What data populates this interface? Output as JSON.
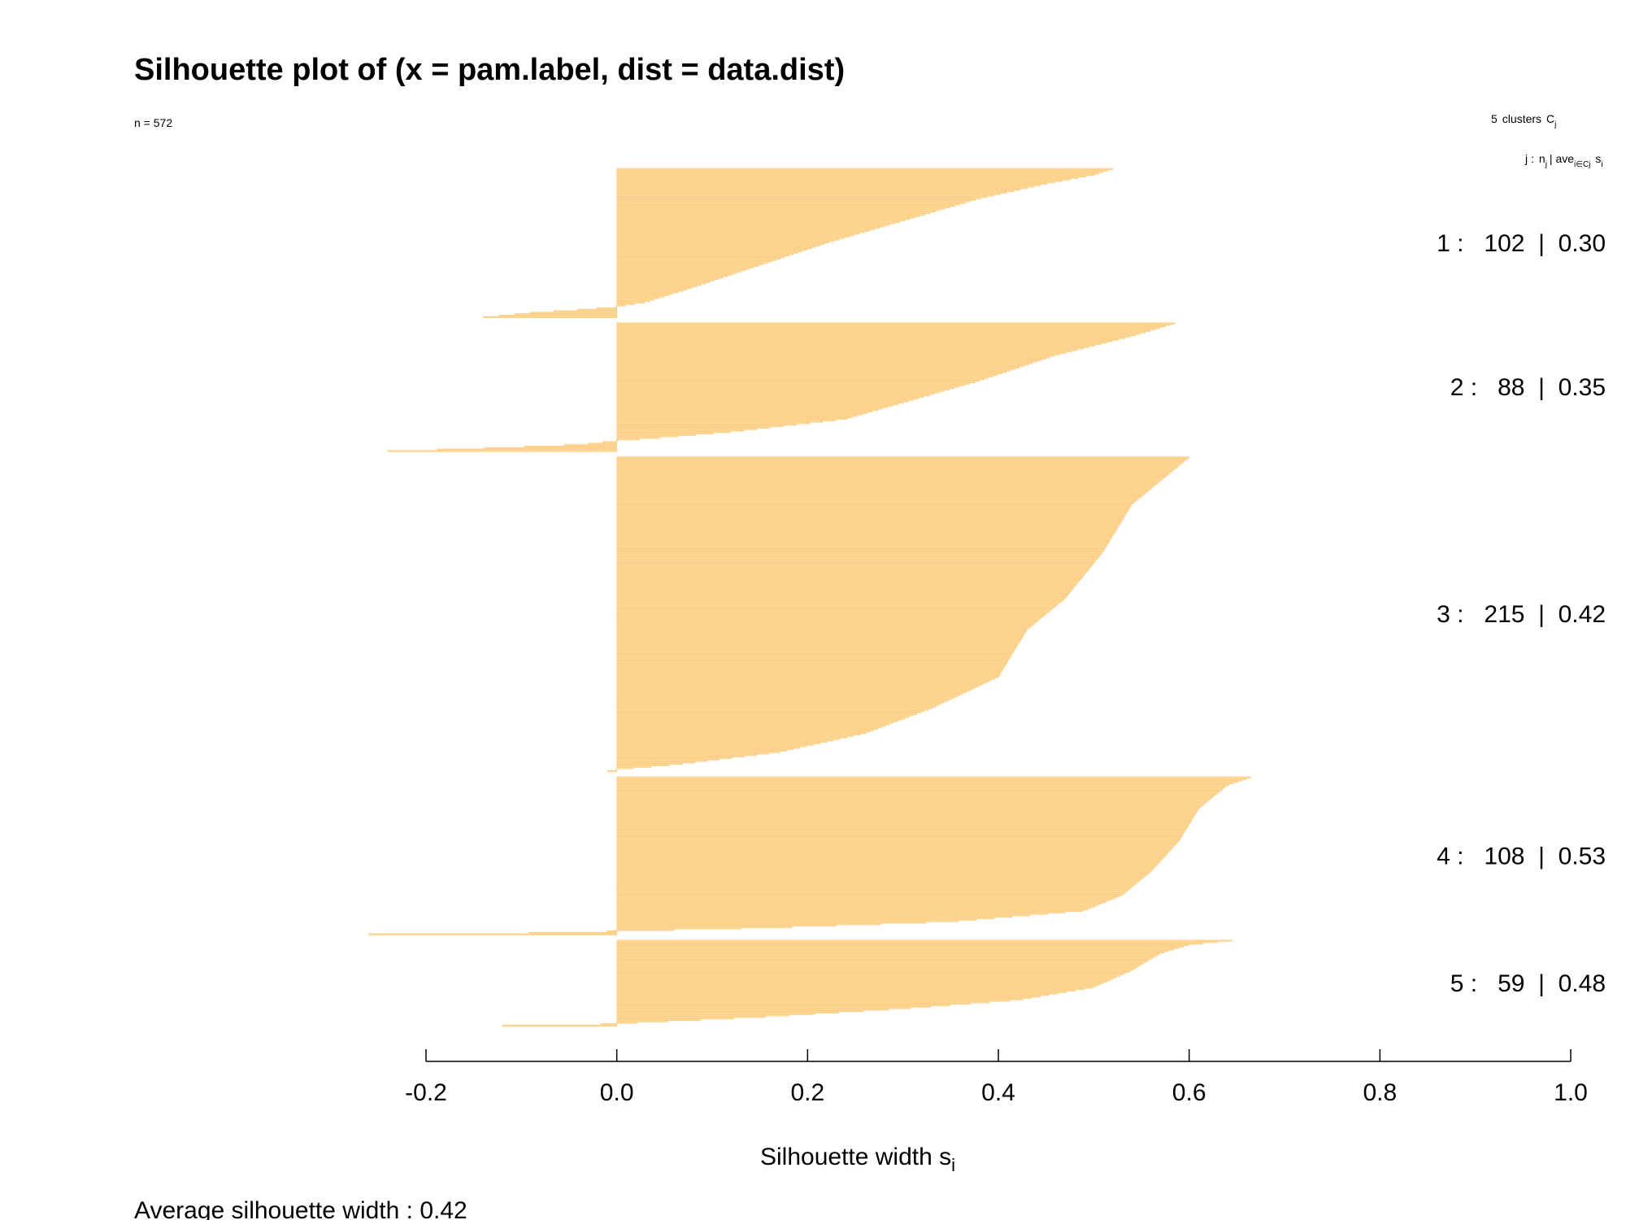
{
  "chart_data": {
    "type": "bar",
    "orientation": "horizontal",
    "title": "Silhouette plot of (x = pam.label, dist = data.dist)",
    "n_label": "n = 572",
    "legend_header": {
      "count": "5",
      "word": "clusters",
      "symbol": "C",
      "symbol_sub": "j",
      "col_j": "j :",
      "col_n": "n",
      "col_n_sub": "j",
      "col_ave": "| ave",
      "col_ave_sub": "i∈Cj",
      "col_s": "s",
      "col_s_sub": "i"
    },
    "xlabel": "Silhouette width s",
    "xlabel_sub": "i",
    "xlim": [
      -0.2,
      1.0
    ],
    "xticks": [
      -0.2,
      0.0,
      0.2,
      0.4,
      0.6,
      0.8,
      1.0
    ],
    "xtick_labels": [
      "-0.2",
      "0.0",
      "0.2",
      "0.4",
      "0.6",
      "0.8",
      "1.0"
    ],
    "bar_color": "#FFD89A",
    "bar_edge_color": "#F5C46E",
    "clusters": [
      {
        "label": "1 :   102  |  0.30",
        "j": 1,
        "n": 102,
        "ave": 0.3,
        "profile": [
          [
            0,
            0.52
          ],
          [
            0.04,
            0.5
          ],
          [
            0.1,
            0.45
          ],
          [
            0.2,
            0.38
          ],
          [
            0.35,
            0.3
          ],
          [
            0.5,
            0.22
          ],
          [
            0.65,
            0.15
          ],
          [
            0.8,
            0.08
          ],
          [
            0.9,
            0.03
          ],
          [
            0.93,
            0.0
          ],
          [
            0.95,
            -0.04
          ],
          [
            0.97,
            -0.09
          ],
          [
            1.0,
            -0.14
          ]
        ]
      },
      {
        "label": "2 :   88  |  0.35",
        "j": 2,
        "n": 88,
        "ave": 0.35,
        "profile": [
          [
            0,
            0.585
          ],
          [
            0.1,
            0.54
          ],
          [
            0.25,
            0.46
          ],
          [
            0.45,
            0.38
          ],
          [
            0.6,
            0.31
          ],
          [
            0.75,
            0.24
          ],
          [
            0.85,
            0.12
          ],
          [
            0.9,
            0.04
          ],
          [
            0.92,
            0.0
          ],
          [
            0.95,
            -0.04
          ],
          [
            0.98,
            -0.15
          ],
          [
            1.0,
            -0.24
          ]
        ]
      },
      {
        "label": "3 :   215  |  0.42",
        "j": 3,
        "n": 215,
        "ave": 0.42,
        "profile": [
          [
            0,
            0.6
          ],
          [
            0.05,
            0.58
          ],
          [
            0.15,
            0.54
          ],
          [
            0.3,
            0.51
          ],
          [
            0.45,
            0.47
          ],
          [
            0.55,
            0.43
          ],
          [
            0.7,
            0.4
          ],
          [
            0.8,
            0.33
          ],
          [
            0.88,
            0.26
          ],
          [
            0.94,
            0.17
          ],
          [
            0.98,
            0.06
          ],
          [
            0.995,
            0.0
          ],
          [
            1.0,
            -0.01
          ]
        ]
      },
      {
        "label": "4 :   108  |  0.53",
        "j": 4,
        "n": 108,
        "ave": 0.53,
        "profile": [
          [
            0,
            0.665
          ],
          [
            0.05,
            0.64
          ],
          [
            0.2,
            0.61
          ],
          [
            0.4,
            0.59
          ],
          [
            0.6,
            0.56
          ],
          [
            0.75,
            0.53
          ],
          [
            0.85,
            0.49
          ],
          [
            0.92,
            0.35
          ],
          [
            0.96,
            0.15
          ],
          [
            0.98,
            0.0
          ],
          [
            0.99,
            -0.08
          ],
          [
            1.0,
            -0.26
          ]
        ]
      },
      {
        "label": "5 :   59  |  0.48",
        "j": 5,
        "n": 59,
        "ave": 0.48,
        "profile": [
          [
            0,
            0.645
          ],
          [
            0.05,
            0.6
          ],
          [
            0.15,
            0.57
          ],
          [
            0.35,
            0.54
          ],
          [
            0.55,
            0.5
          ],
          [
            0.7,
            0.42
          ],
          [
            0.8,
            0.3
          ],
          [
            0.9,
            0.15
          ],
          [
            0.96,
            0.03
          ],
          [
            0.98,
            0.0
          ],
          [
            1.0,
            -0.12
          ]
        ]
      }
    ],
    "footer": "Average silhouette width :  0.42"
  }
}
